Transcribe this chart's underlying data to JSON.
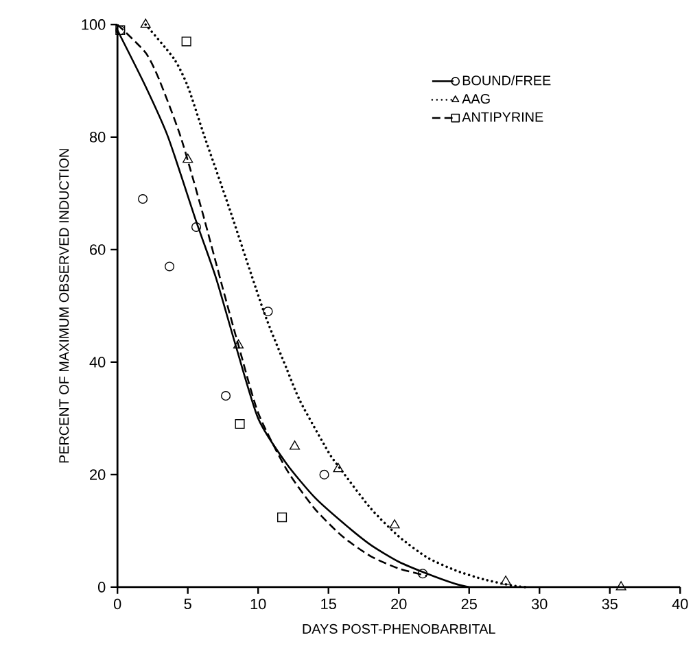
{
  "chart_data": {
    "type": "line",
    "xlabel": "DAYS POST-PHENOBARBITAL",
    "ylabel": "PERCENT OF MAXIMUM OBSERVED INDUCTION",
    "xlim": [
      0,
      40
    ],
    "ylim": [
      0,
      100
    ],
    "xticks": [
      0,
      5,
      10,
      15,
      20,
      25,
      30,
      35,
      40
    ],
    "yticks": [
      0,
      20,
      40,
      60,
      80,
      100
    ],
    "legend": "top right",
    "grid": false,
    "series": [
      {
        "name": "BOUND/FREE",
        "line_style": "solid",
        "color": "#000000",
        "x": [
          0,
          2,
          3.6,
          5.6,
          7,
          8.4,
          10,
          12,
          14,
          16,
          18,
          20,
          22,
          24,
          25
        ],
        "values": [
          99,
          89,
          80,
          65,
          55,
          43,
          30,
          22,
          16,
          11.5,
          7.5,
          4.5,
          2.4,
          0.6,
          0
        ]
      },
      {
        "name": "AAG",
        "line_style": "dotted",
        "color": "#000000",
        "x": [
          2,
          4,
          5,
          6.2,
          8,
          10.4,
          12,
          13,
          15,
          16,
          18,
          20,
          22,
          24,
          26,
          28,
          29
        ],
        "values": [
          100,
          94,
          89,
          80,
          67,
          49,
          39,
          33,
          24,
          20.5,
          14,
          9,
          5.3,
          3,
          1.4,
          0.3,
          0
        ]
      },
      {
        "name": "ANTIPYRINE",
        "line_style": "dashed",
        "color": "#000000",
        "x": [
          0,
          2,
          3,
          4.5,
          6,
          7.5,
          8.6,
          10,
          12,
          14,
          16,
          18,
          20,
          22
        ],
        "values": [
          100,
          95,
          90,
          80,
          67,
          53,
          43,
          31,
          21,
          14,
          9,
          5.5,
          3.3,
          2
        ]
      },
      {
        "type": "scatter",
        "marker": "circle",
        "color": "#000000",
        "x": [
          0.2,
          1.8,
          3.7,
          5.6,
          7.7,
          10.7,
          14.7,
          21.7
        ],
        "values": [
          99,
          69,
          57,
          64,
          34,
          49,
          20,
          2.4
        ]
      },
      {
        "type": "scatter",
        "marker": "triangle",
        "color": "#000000",
        "x": [
          2,
          5,
          8.6,
          12.6,
          15.7,
          19.7,
          27.6,
          35.8
        ],
        "values": [
          100,
          76,
          43,
          25,
          21,
          11,
          1,
          0
        ]
      },
      {
        "type": "scatter",
        "marker": "square",
        "color": "#000000",
        "x": [
          0.2,
          4.9,
          8.7,
          11.7
        ],
        "values": [
          99,
          97,
          29,
          12.4
        ]
      }
    ]
  }
}
